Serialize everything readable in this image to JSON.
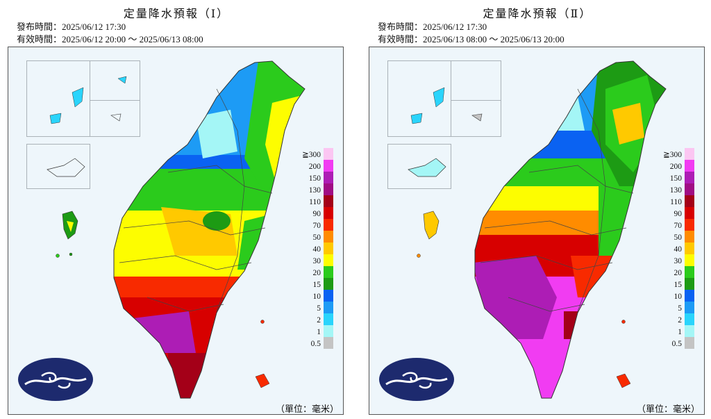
{
  "panels": [
    {
      "title": "定量降水預報（Ⅰ）",
      "issue_time": "發布時間：2025/06/12 17:30",
      "valid_time": "有效時間：2025/06/12 20:00 ～ 2025/06/13 08:00",
      "unit": "（單位：毫米）"
    },
    {
      "title": "定量降水預報（Ⅱ）",
      "issue_time": "發布時間：2025/06/12 17:30",
      "valid_time": "有效時間：2025/06/13 08:00 ～ 2025/06/13 20:00",
      "unit": "（單位：毫米）"
    }
  ],
  "legend": {
    "levels": [
      "≧300",
      "200",
      "150",
      "130",
      "110",
      "90",
      "70",
      "50",
      "40",
      "30",
      "20",
      "15",
      "10",
      "5",
      "2",
      "1",
      "0.5"
    ],
    "colors": [
      "#fbc6f2",
      "#f13cf2",
      "#ad1db5",
      "#a00d85",
      "#a40018",
      "#d70000",
      "#f82a00",
      "#ff8c00",
      "#ffc900",
      "#fdfd00",
      "#2bcb1c",
      "#1d9b14",
      "#0a62f2",
      "#1d9bf5",
      "#2ad4fc",
      "#a4f6f6",
      "#c4c4c4"
    ]
  },
  "logo": {
    "name": "central-weather-administration-logo"
  }
}
